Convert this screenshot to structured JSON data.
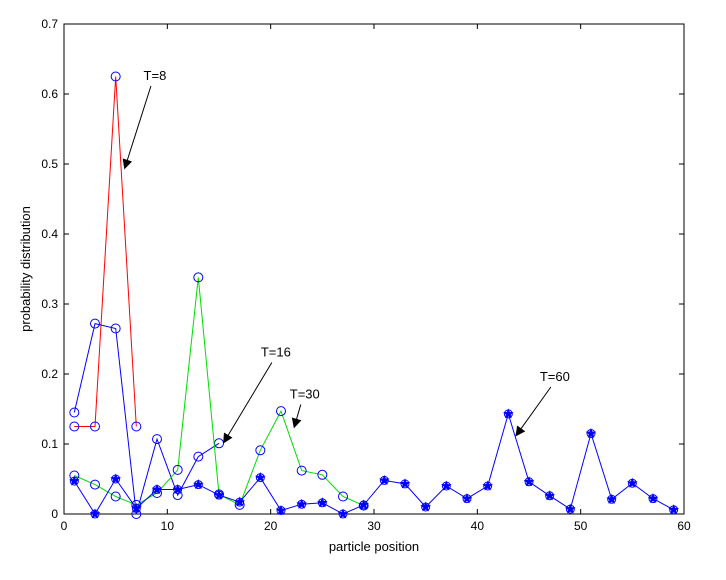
{
  "chart_data": {
    "type": "line",
    "title": "",
    "xlabel": "particle position",
    "ylabel": "probability distribution",
    "xlim": [
      0,
      60
    ],
    "ylim": [
      0,
      0.7
    ],
    "xticks": [
      0,
      10,
      20,
      30,
      40,
      50,
      60
    ],
    "yticks": [
      0,
      0.1,
      0.2,
      0.3,
      0.4,
      0.5,
      0.6,
      0.7
    ],
    "grid": false,
    "series": [
      {
        "color": "#ff0000",
        "marker": "circle",
        "x": [
          1,
          3,
          5,
          7
        ],
        "y": [
          0.125,
          0.125,
          0.625,
          0.125
        ]
      },
      {
        "color": "#0000ff",
        "marker": "circle",
        "x": [
          1,
          3,
          5,
          7,
          9,
          11,
          13,
          15
        ],
        "y": [
          0.145,
          0.272,
          0.265,
          0.0,
          0.107,
          0.027,
          0.082,
          0.101
        ]
      },
      {
        "color": "#00dd00",
        "marker": "circle",
        "x": [
          1,
          3,
          5,
          7,
          9,
          11,
          13,
          15,
          17,
          19,
          21,
          23,
          25,
          27,
          29
        ],
        "y": [
          0.055,
          0.042,
          0.025,
          0.013,
          0.03,
          0.063,
          0.338,
          0.028,
          0.013,
          0.091,
          0.147,
          0.062,
          0.056,
          0.025,
          0.012
        ]
      },
      {
        "color": "#0000ff",
        "marker": "star",
        "x": [
          1,
          3,
          5,
          7,
          9,
          11,
          13,
          15,
          17,
          19,
          21,
          23,
          25,
          27,
          29,
          31,
          33,
          35,
          37,
          39,
          41,
          43,
          45,
          47,
          49,
          51,
          53,
          55,
          57,
          59
        ],
        "y": [
          0.047,
          0.0,
          0.05,
          0.008,
          0.035,
          0.035,
          0.042,
          0.027,
          0.017,
          0.052,
          0.005,
          0.014,
          0.016,
          0.0,
          0.013,
          0.048,
          0.043,
          0.01,
          0.04,
          0.022,
          0.04,
          0.143,
          0.046,
          0.026,
          0.007,
          0.115,
          0.021,
          0.044,
          0.022,
          0.006
        ]
      }
    ],
    "annotations": [
      {
        "text": "T=8",
        "x": 8.8,
        "y": 0.62,
        "arrow_to": [
          5.9,
          0.495
        ]
      },
      {
        "text": "T=16",
        "x": 20.5,
        "y": 0.225,
        "arrow_to": [
          15.5,
          0.103
        ]
      },
      {
        "text": "T=30",
        "x": 23.3,
        "y": 0.165,
        "arrow_to": [
          22.3,
          0.125
        ]
      },
      {
        "text": "T=60",
        "x": 47.5,
        "y": 0.19,
        "arrow_to": [
          43.8,
          0.113
        ]
      }
    ]
  }
}
